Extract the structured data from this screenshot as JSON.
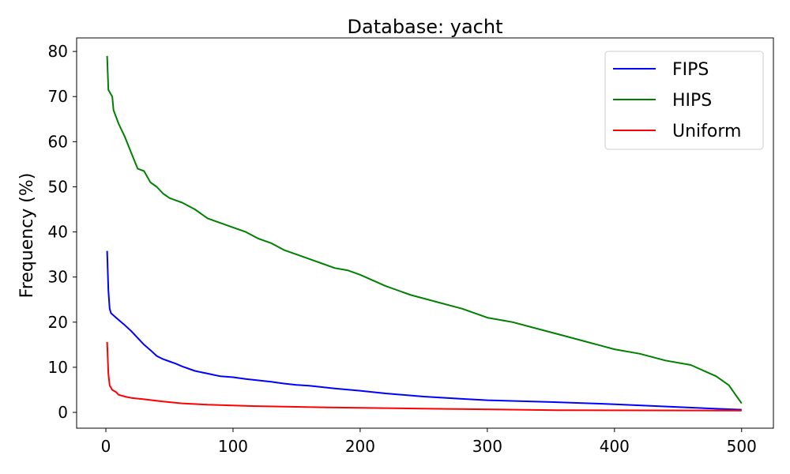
{
  "chart_data": {
    "type": "line",
    "title": "Database: yacht",
    "xlabel": "",
    "ylabel": "Frequency (%)",
    "xlim": [
      -23,
      525
    ],
    "ylim": [
      -3.5,
      83
    ],
    "xticks": [
      0,
      100,
      200,
      300,
      400,
      500
    ],
    "yticks": [
      0,
      10,
      20,
      30,
      40,
      50,
      60,
      70,
      80
    ],
    "grid": false,
    "legend_position": "top-right",
    "series": [
      {
        "name": "FIPS",
        "color": "#0000ff",
        "x": [
          1,
          2,
          3,
          4,
          6,
          8,
          10,
          15,
          20,
          25,
          30,
          35,
          40,
          45,
          50,
          55,
          60,
          70,
          80,
          90,
          100,
          110,
          120,
          130,
          140,
          150,
          160,
          170,
          180,
          200,
          220,
          250,
          280,
          300,
          350,
          400,
          450,
          480,
          500
        ],
        "y": [
          35.8,
          27,
          23,
          22,
          21.5,
          21,
          20.5,
          19.3,
          18,
          16.5,
          15,
          13.8,
          12.5,
          11.8,
          11.3,
          10.8,
          10.2,
          9.2,
          8.6,
          8,
          7.8,
          7.4,
          7.1,
          6.8,
          6.4,
          6.1,
          5.9,
          5.6,
          5.3,
          4.8,
          4.2,
          3.5,
          3,
          2.7,
          2.3,
          1.8,
          1.2,
          0.8,
          0.6
        ]
      },
      {
        "name": "HIPS",
        "color": "#008000",
        "x": [
          1,
          2,
          5,
          6,
          10,
          15,
          20,
          25,
          30,
          35,
          40,
          45,
          50,
          60,
          70,
          80,
          90,
          100,
          110,
          120,
          130,
          140,
          150,
          160,
          170,
          180,
          190,
          200,
          220,
          240,
          260,
          280,
          300,
          320,
          340,
          360,
          380,
          400,
          420,
          440,
          460,
          480,
          490,
          495,
          500
        ],
        "y": [
          79,
          71.5,
          70,
          67,
          64,
          61,
          57.5,
          54,
          53.5,
          51,
          50,
          48.5,
          47.5,
          46.5,
          45,
          43,
          42,
          41,
          40,
          38.5,
          37.5,
          36,
          35,
          34,
          33,
          32,
          31.5,
          30.5,
          28,
          26,
          24.5,
          23,
          21,
          20,
          18.5,
          17,
          15.5,
          14,
          13,
          11.5,
          10.5,
          8,
          6,
          4,
          2
        ]
      },
      {
        "name": "Uniform",
        "color": "#ff0000",
        "x": [
          1,
          2,
          3,
          5,
          8,
          10,
          15,
          20,
          30,
          45,
          60,
          80,
          115,
          175,
          255,
          355,
          500
        ],
        "y": [
          15.6,
          8.5,
          6,
          5,
          4.5,
          3.9,
          3.5,
          3.2,
          2.9,
          2.4,
          2,
          1.7,
          1.4,
          1.1,
          0.8,
          0.5,
          0.4
        ]
      }
    ]
  }
}
